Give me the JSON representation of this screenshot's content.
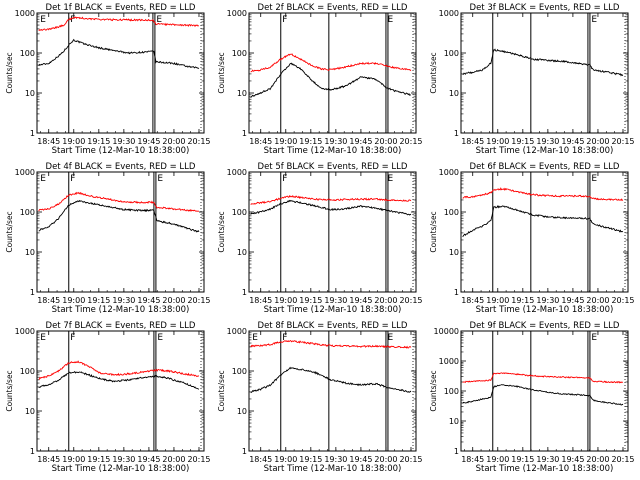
{
  "x_tick_labels": [
    "18:45",
    "19:00",
    "19:15",
    "19:30",
    "19:45",
    "20:00",
    "20:15"
  ],
  "x_tick_hours": [
    18.75,
    19.0,
    19.25,
    19.5,
    19.75,
    20.0,
    20.25
  ],
  "xlabel": "Start Time (12-Mar-10 18:38:00)",
  "ylabel": "Counts/sec",
  "colors": {
    "events": "#000000",
    "lld": "#ff0000"
  },
  "chart_data": [
    {
      "type": "line",
      "title": "Det 1f BLACK = Events, RED = LLD",
      "xlim": [
        18.633,
        20.3
      ],
      "ylim": [
        1,
        1000
      ],
      "y_log": true,
      "y_ticks": [
        1,
        10,
        100,
        1000
      ],
      "y_tick_labels": [
        "1",
        "10",
        "100",
        "1000"
      ],
      "vlines": [
        18.95,
        19.79,
        19.81
      ],
      "markers": [
        {
          "label": "E",
          "x": 18.655
        },
        {
          "label": "F",
          "x": 18.955
        },
        {
          "label": "E",
          "x": 19.815
        }
      ],
      "series": [
        {
          "x": [
            18.65,
            18.75,
            18.85,
            18.9,
            18.95,
            19.0,
            19.1,
            19.25,
            19.4,
            19.55,
            19.7,
            19.8,
            19.82,
            20.0,
            20.15,
            20.25
          ],
          "y": [
            50,
            55,
            85,
            110,
            160,
            210,
            170,
            135,
            115,
            100,
            105,
            110,
            60,
            55,
            45,
            42
          ]
        },
        {
          "x": [
            18.65,
            18.75,
            18.85,
            18.9,
            18.95,
            19.0,
            19.2,
            19.4,
            19.6,
            19.79,
            19.82,
            20.0,
            20.25
          ],
          "y": [
            380,
            390,
            450,
            500,
            680,
            780,
            700,
            680,
            670,
            660,
            530,
            510,
            480
          ]
        }
      ]
    },
    {
      "type": "line",
      "title": "Det 2f BLACK = Events, RED = LLD",
      "xlim": [
        18.633,
        20.3
      ],
      "ylim": [
        1,
        1000
      ],
      "y_log": true,
      "y_ticks": [
        1,
        10,
        100,
        1000
      ],
      "y_tick_labels": [
        "1",
        "10",
        "100",
        "1000"
      ],
      "vlines": [
        18.95,
        19.43,
        20.0,
        20.02
      ],
      "markers": [
        {
          "label": "F",
          "x": 18.955
        },
        {
          "label": "E",
          "x": 20.005
        }
      ],
      "series": [
        {
          "x": [
            18.65,
            18.75,
            18.85,
            18.95,
            19.05,
            19.15,
            19.25,
            19.35,
            19.45,
            19.6,
            19.75,
            19.9,
            20.0,
            20.1,
            20.25
          ],
          "y": [
            8,
            10,
            13,
            30,
            55,
            40,
            22,
            13,
            12,
            15,
            25,
            22,
            14,
            11,
            9
          ]
        },
        {
          "x": [
            18.65,
            18.75,
            18.85,
            18.95,
            19.05,
            19.15,
            19.25,
            19.35,
            19.45,
            19.6,
            19.75,
            19.9,
            20.0,
            20.1,
            20.25
          ],
          "y": [
            35,
            38,
            45,
            70,
            95,
            70,
            50,
            40,
            38,
            45,
            55,
            55,
            48,
            42,
            38
          ]
        }
      ]
    },
    {
      "type": "line",
      "title": "Det 3f BLACK = Events, RED = LLD",
      "xlim": [
        18.633,
        20.3
      ],
      "ylim": [
        1,
        1000
      ],
      "y_log": true,
      "y_ticks": [
        1,
        10,
        100,
        1000
      ],
      "y_tick_labels": [
        "1",
        "10",
        "100",
        "1000"
      ],
      "vlines": [
        18.95,
        19.33,
        19.9,
        19.92
      ],
      "markers": [
        {
          "label": "E",
          "x": 19.925
        }
      ],
      "series": [
        {
          "x": [
            18.65,
            18.75,
            18.85,
            18.93,
            18.96,
            19.05,
            19.2,
            19.35,
            19.5,
            19.65,
            19.8,
            19.92,
            19.95,
            20.1,
            20.25
          ],
          "y": [
            30,
            33,
            38,
            55,
            120,
            110,
            90,
            70,
            65,
            62,
            55,
            50,
            38,
            33,
            28
          ]
        }
      ]
    },
    {
      "type": "line",
      "title": "Det 4f BLACK = Events, RED = LLD",
      "xlim": [
        18.633,
        20.3
      ],
      "ylim": [
        1,
        1000
      ],
      "y_log": true,
      "y_ticks": [
        1,
        10,
        100,
        1000
      ],
      "y_tick_labels": [
        "1",
        "10",
        "100",
        "1000"
      ],
      "vlines": [
        18.95,
        19.8,
        19.82
      ],
      "markers": [
        {
          "label": "E",
          "x": 18.655
        },
        {
          "label": "F",
          "x": 18.955
        },
        {
          "label": "E",
          "x": 19.825
        }
      ],
      "series": [
        {
          "x": [
            18.65,
            18.75,
            18.85,
            18.95,
            19.05,
            19.2,
            19.35,
            19.5,
            19.65,
            19.8,
            19.83,
            20.0,
            20.15,
            20.25
          ],
          "y": [
            35,
            42,
            70,
            150,
            190,
            160,
            135,
            115,
            110,
            110,
            60,
            50,
            38,
            32
          ]
        },
        {
          "x": [
            18.65,
            18.75,
            18.85,
            18.95,
            19.05,
            19.2,
            19.35,
            19.5,
            19.65,
            19.8,
            19.83,
            20.0,
            20.15,
            20.25
          ],
          "y": [
            110,
            120,
            160,
            270,
            300,
            240,
            210,
            180,
            175,
            175,
            130,
            120,
            110,
            105
          ]
        }
      ]
    },
    {
      "type": "line",
      "title": "Det 5f BLACK = Events, RED = LLD",
      "xlim": [
        18.633,
        20.3
      ],
      "ylim": [
        1,
        1000
      ],
      "y_log": true,
      "y_ticks": [
        1,
        10,
        100,
        1000
      ],
      "y_tick_labels": [
        "1",
        "10",
        "100",
        "1000"
      ],
      "vlines": [
        18.95,
        19.43,
        20.0,
        20.02
      ],
      "markers": [
        {
          "label": "F",
          "x": 18.955
        },
        {
          "label": "E",
          "x": 20.005
        }
      ],
      "series": [
        {
          "x": [
            18.65,
            18.75,
            18.85,
            18.95,
            19.05,
            19.15,
            19.3,
            19.45,
            19.6,
            19.75,
            19.9,
            20.0,
            20.1,
            20.25
          ],
          "y": [
            90,
            100,
            120,
            160,
            190,
            170,
            140,
            115,
            120,
            140,
            125,
            110,
            100,
            85
          ]
        },
        {
          "x": [
            18.65,
            18.75,
            18.85,
            18.95,
            19.05,
            19.15,
            19.3,
            19.45,
            19.6,
            19.75,
            19.9,
            20.0,
            20.1,
            20.25
          ],
          "y": [
            160,
            170,
            185,
            220,
            250,
            230,
            210,
            200,
            205,
            210,
            210,
            200,
            195,
            190
          ]
        }
      ]
    },
    {
      "type": "line",
      "title": "Det 6f BLACK = Events, RED = LLD",
      "xlim": [
        18.633,
        20.3
      ],
      "ylim": [
        1,
        1000
      ],
      "y_log": true,
      "y_ticks": [
        1,
        10,
        100,
        1000
      ],
      "y_tick_labels": [
        "1",
        "10",
        "100",
        "1000"
      ],
      "vlines": [
        18.95,
        19.33,
        19.9,
        19.92
      ],
      "markers": [
        {
          "label": "E",
          "x": 19.925
        }
      ],
      "series": [
        {
          "x": [
            18.65,
            18.75,
            18.85,
            18.93,
            18.96,
            19.05,
            19.2,
            19.35,
            19.5,
            19.65,
            19.8,
            19.92,
            19.95,
            20.1,
            20.25
          ],
          "y": [
            25,
            35,
            45,
            60,
            130,
            140,
            110,
            85,
            75,
            72,
            70,
            68,
            50,
            40,
            32
          ]
        },
        {
          "x": [
            18.65,
            18.75,
            18.85,
            18.93,
            18.96,
            19.05,
            19.2,
            19.35,
            19.5,
            19.65,
            19.8,
            19.92,
            19.95,
            20.1,
            20.25
          ],
          "y": [
            230,
            240,
            270,
            300,
            360,
            380,
            320,
            270,
            255,
            250,
            250,
            245,
            215,
            205,
            200
          ]
        }
      ]
    },
    {
      "type": "line",
      "title": "Det 7f BLACK = Events, RED = LLD",
      "xlim": [
        18.633,
        20.3
      ],
      "ylim": [
        1,
        1000
      ],
      "y_log": true,
      "y_ticks": [
        1,
        10,
        100,
        1000
      ],
      "y_tick_labels": [
        "1",
        "10",
        "100",
        "1000"
      ],
      "vlines": [
        18.95,
        19.8,
        19.82
      ],
      "markers": [
        {
          "label": "E",
          "x": 18.655
        },
        {
          "label": "F",
          "x": 18.955
        },
        {
          "label": "E",
          "x": 19.825
        }
      ],
      "series": [
        {
          "x": [
            18.65,
            18.75,
            18.85,
            18.95,
            19.05,
            19.15,
            19.25,
            19.4,
            19.55,
            19.7,
            19.82,
            19.95,
            20.1,
            20.25
          ],
          "y": [
            40,
            45,
            60,
            90,
            95,
            80,
            65,
            55,
            60,
            70,
            75,
            65,
            50,
            35
          ]
        },
        {
          "x": [
            18.65,
            18.75,
            18.85,
            18.95,
            19.05,
            19.15,
            19.25,
            19.4,
            19.55,
            19.7,
            19.82,
            19.95,
            20.1,
            20.25
          ],
          "y": [
            65,
            75,
            100,
            160,
            170,
            130,
            90,
            80,
            85,
            95,
            105,
            100,
            85,
            75
          ]
        }
      ]
    },
    {
      "type": "line",
      "title": "Det 8f BLACK = Events, RED = LLD",
      "xlim": [
        18.633,
        20.3
      ],
      "ylim": [
        1,
        1000
      ],
      "y_log": true,
      "y_ticks": [
        1,
        10,
        100,
        1000
      ],
      "y_tick_labels": [
        "1",
        "10",
        "100",
        "1000"
      ],
      "vlines": [
        18.95,
        19.43,
        20.0,
        20.02
      ],
      "markers": [
        {
          "label": "E",
          "x": 18.655
        },
        {
          "label": "F",
          "x": 18.955
        },
        {
          "label": "E",
          "x": 20.005
        }
      ],
      "series": [
        {
          "x": [
            18.65,
            18.75,
            18.85,
            18.95,
            19.05,
            19.15,
            19.3,
            19.45,
            19.6,
            19.75,
            19.9,
            20.0,
            20.1,
            20.25
          ],
          "y": [
            30,
            35,
            45,
            80,
            120,
            110,
            90,
            60,
            50,
            45,
            48,
            40,
            35,
            30
          ]
        },
        {
          "x": [
            18.65,
            18.75,
            18.85,
            18.95,
            19.05,
            19.15,
            19.3,
            19.45,
            19.6,
            19.75,
            19.9,
            20.0,
            20.1,
            20.25
          ],
          "y": [
            420,
            430,
            460,
            540,
            560,
            530,
            470,
            430,
            420,
            410,
            420,
            410,
            400,
            390
          ]
        }
      ]
    },
    {
      "type": "line",
      "title": "Det 9f BLACK = Events, RED = LLD",
      "xlim": [
        18.633,
        20.3
      ],
      "ylim": [
        1,
        10000
      ],
      "y_log": true,
      "y_ticks": [
        1,
        10,
        100,
        1000,
        10000
      ],
      "y_tick_labels": [
        "1",
        "10",
        "100",
        "1000",
        "10000"
      ],
      "vlines": [
        18.95,
        19.33,
        19.9,
        19.92
      ],
      "markers": [
        {
          "label": "E",
          "x": 19.925
        }
      ],
      "series": [
        {
          "x": [
            18.65,
            18.75,
            18.85,
            18.93,
            18.96,
            19.05,
            19.2,
            19.35,
            19.5,
            19.65,
            19.8,
            19.92,
            19.95,
            20.1,
            20.25
          ],
          "y": [
            40,
            45,
            55,
            60,
            140,
            160,
            140,
            110,
            90,
            80,
            75,
            70,
            50,
            40,
            35
          ]
        },
        {
          "x": [
            18.65,
            18.75,
            18.85,
            18.93,
            18.96,
            19.05,
            19.2,
            19.35,
            19.5,
            19.65,
            19.8,
            19.92,
            19.95,
            20.1,
            20.25
          ],
          "y": [
            200,
            210,
            220,
            230,
            380,
            400,
            360,
            320,
            300,
            290,
            280,
            270,
            210,
            200,
            195
          ]
        }
      ]
    }
  ]
}
